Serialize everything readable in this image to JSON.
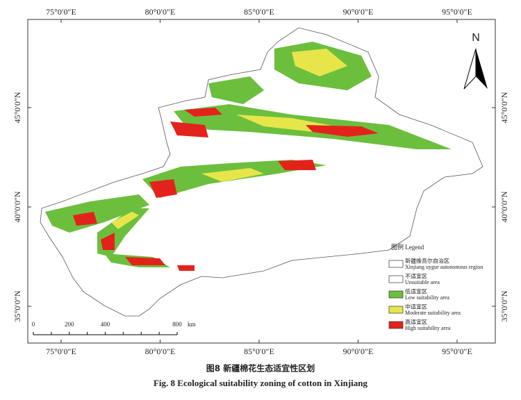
{
  "map": {
    "lon_labels": [
      "75°0′0″E",
      "80°0′0″E",
      "85°0′0″E",
      "90°0′0″E",
      "95°0′0″E"
    ],
    "lat_labels": [
      "45°0′0″N",
      "40°0′0″N",
      "35°0′0″N"
    ],
    "north": "N",
    "legend": {
      "title": "图例  Legend",
      "items": [
        {
          "cn": "新疆维吾尔自治区",
          "en": "Xinjiang uygur autonomous region",
          "color": "#ffffff"
        },
        {
          "cn": "不适宜区",
          "en": "Unsuitable area",
          "color": "#ffffff"
        },
        {
          "cn": "低适宜区",
          "en": "Low suitability area",
          "color": "#6cbf3d"
        },
        {
          "cn": "中适宜区",
          "en": "Moderate suitability area",
          "color": "#e6e64a"
        },
        {
          "cn": "高适宜区",
          "en": "High suitability area",
          "color": "#e3231b"
        }
      ]
    },
    "scale": {
      "ticks": [
        "0",
        "200",
        "400",
        "800"
      ],
      "unit": "km"
    }
  },
  "caption": {
    "cn": "图8    新疆棉花生态适宜性区划",
    "en": "Fig. 8    Ecological suitability zoning of cotton in Xinjiang"
  }
}
